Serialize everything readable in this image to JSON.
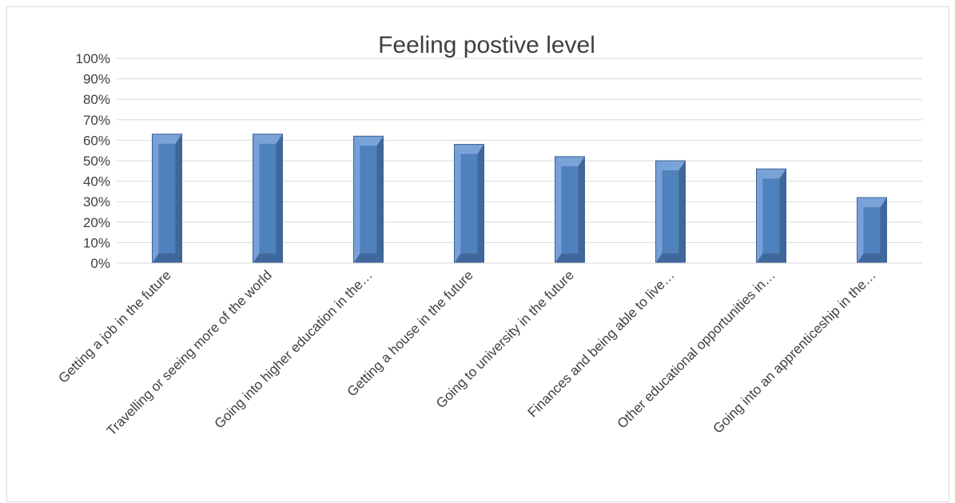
{
  "chart_data": {
    "type": "bar",
    "title": "Feeling postive level",
    "categories": [
      "Getting a job in the future",
      "Travelling or seeing more of the world",
      "Going into higher education in the…",
      "Getting a house in the future",
      "Going to university in the future",
      "Finances and being able to live…",
      "Other educational opportunities in…",
      "Going into an apprenticeship in the…"
    ],
    "series": [
      {
        "values": [
          0.63,
          0.63,
          0.62,
          0.58,
          0.52,
          0.5,
          0.46,
          0.32
        ]
      }
    ],
    "yticks": [
      "0%",
      "10%",
      "20%",
      "30%",
      "40%",
      "50%",
      "60%",
      "70%",
      "80%",
      "90%",
      "100%"
    ],
    "ylim": [
      0,
      1
    ],
    "xlabel": "",
    "ylabel": "",
    "grid": true,
    "legend": "none",
    "colors": {
      "bar": "#4f81bd",
      "bar_light": "#7aa3d8",
      "bar_dark": "#3c6496",
      "grid": "#d9d9d9",
      "text": "#404040"
    }
  }
}
